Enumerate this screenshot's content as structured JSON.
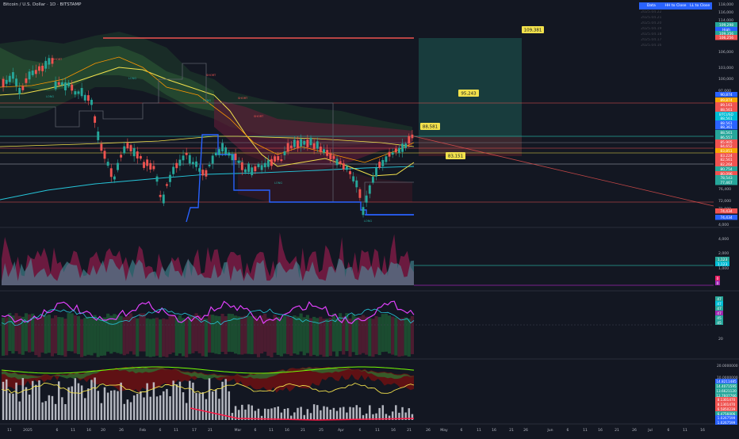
{
  "header": {
    "title": "Bitcoin / U.S. Dollar · 1D · BITSTAMP"
  },
  "colors": {
    "background": "#131722",
    "green": "#26a69a",
    "red": "#ef5350",
    "yellow": "#f2e14c",
    "blue": "#2962ff",
    "purple": "#9c27b0",
    "teal": "#00bcd4"
  },
  "table": {
    "headers": [
      "Data",
      "HH to Close",
      "LL to Close"
    ],
    "rows": [
      [
        "2025.04.22",
        "",
        ""
      ],
      [
        "2025.04.21",
        "",
        ""
      ],
      [
        "2025.04.20",
        "",
        ""
      ],
      [
        "2025.04.19",
        "",
        ""
      ],
      [
        "2025.04.18",
        "",
        ""
      ],
      [
        "2025.04.17",
        "",
        ""
      ],
      [
        "2025.04.16",
        "",
        ""
      ]
    ]
  },
  "price_callouts": {
    "target": "109,381",
    "mid": "95,243",
    "current": "88,581",
    "stop": "83,151"
  },
  "markers": {
    "long_label": "LONG",
    "short_label": "SHORT"
  },
  "price_axis": {
    "labels": [
      "118,000",
      "116,000",
      "114,000",
      "112,000",
      "110,000",
      "106,000",
      "103,000",
      "100,000",
      "97,000",
      "94,000",
      "91,000",
      "80,000",
      "79,000",
      "76,400",
      "72,000",
      "71,000",
      "4,000"
    ],
    "tags": [
      {
        "text": "109,298",
        "color": "#26a69a"
      },
      {
        "text": "High",
        "color": "#2962ff"
      },
      {
        "text": "109,356",
        "color": "#26a69a"
      },
      {
        "text": "106,256",
        "color": "#ef5350"
      },
      {
        "text": "90,874",
        "color": "#2962ff"
      },
      {
        "text": "89,874",
        "color": "#f7a600"
      },
      {
        "text": "89,161",
        "color": "#ef5350"
      },
      {
        "text": "88,561",
        "color": "#ef5350"
      },
      {
        "text": "BTCUSD",
        "color": "#00bcd4"
      },
      {
        "text": "88,561",
        "color": "#00bcd4"
      },
      {
        "text": "88,561",
        "color": "#2962ff"
      },
      {
        "text": "88,361",
        "color": "#2962ff"
      },
      {
        "text": "88,561",
        "color": "#26a69a"
      },
      {
        "text": "86,557",
        "color": "#26a69a"
      },
      {
        "text": "85,905",
        "color": "#ef5350"
      },
      {
        "text": "84,652",
        "color": "#ef5350"
      },
      {
        "text": "83,851",
        "color": "#f7a600"
      },
      {
        "text": "83,224",
        "color": "#ef5350"
      },
      {
        "text": "82,561",
        "color": "#ef5350"
      },
      {
        "text": "82,264",
        "color": "#ef5350"
      },
      {
        "text": "80,754",
        "color": "#26a69a"
      },
      {
        "text": "80,096",
        "color": "#ef5350"
      },
      {
        "text": "78,543",
        "color": "#26a69a"
      },
      {
        "text": "77,467",
        "color": "#26a69a"
      },
      {
        "text": "74,434",
        "color": "#ef5350"
      },
      {
        "text": "74,434",
        "color": "#2962ff"
      }
    ]
  },
  "pane2": {
    "labels": [
      "4,000",
      "2,000",
      "1,000"
    ],
    "tags": [
      {
        "text": "1,123",
        "color": "#26a69a"
      },
      {
        "text": "1,123",
        "color": "#00bcd4"
      },
      {
        "text": "0",
        "color": "#e91e63"
      },
      {
        "text": "0",
        "color": "#9c27b0"
      }
    ]
  },
  "pane3": {
    "labels": [
      "80",
      "20"
    ],
    "tags": [
      {
        "text": "47",
        "color": "#26a69a"
      },
      {
        "text": "47",
        "color": "#00bcd4"
      },
      {
        "text": "47",
        "color": "#26a69a"
      },
      {
        "text": "47",
        "color": "#9c27b0"
      },
      {
        "text": "45",
        "color": "#26a69a"
      },
      {
        "text": "45",
        "color": "#26a69a"
      }
    ]
  },
  "pane4": {
    "labels": [
      "20.0000000",
      "10.0000000"
    ],
    "tags": [
      {
        "text": "14.8211485",
        "color": "#2962ff"
      },
      {
        "text": "14.4071595",
        "color": "#26a69a"
      },
      {
        "text": "13.6621120",
        "color": "#26a69a"
      },
      {
        "text": "12.7607766",
        "color": "#26a69a"
      },
      {
        "text": "8.1301470",
        "color": "#ef5350"
      },
      {
        "text": "8.1301470",
        "color": "#ef5350"
      },
      {
        "text": "6.5850239",
        "color": "#ef5350"
      },
      {
        "text": "6.4756006",
        "color": "#26a69a"
      },
      {
        "text": "1.0267599",
        "color": "#2962ff"
      },
      {
        "text": "1.0267599",
        "color": "#2962ff"
      }
    ]
  },
  "time_axis": {
    "labels": [
      "11",
      "2025",
      "6",
      "11",
      "16",
      "20",
      "26",
      "Feb",
      "6",
      "11",
      "17",
      "21",
      "Mar",
      "6",
      "11",
      "16",
      "21",
      "25",
      "Apr",
      "6",
      "11",
      "16",
      "21",
      "26",
      "May",
      "6",
      "11",
      "16",
      "21",
      "26",
      "Jun",
      "6",
      "11",
      "16",
      "21",
      "26",
      "Jul",
      "6",
      "11",
      "16"
    ]
  }
}
